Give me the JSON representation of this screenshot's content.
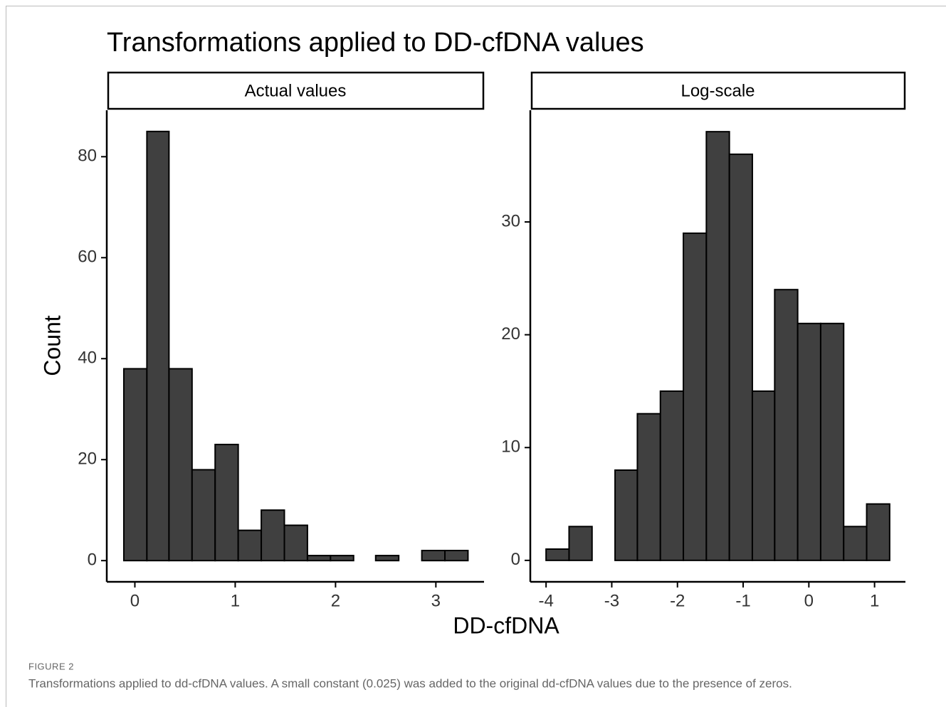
{
  "figure": {
    "title": "Transformations applied to DD-cfDNA values",
    "xlabel": "DD-cfDNA",
    "ylabel": "Count",
    "label": "FIGURE 2",
    "caption": "Transformations applied to dd-cfDNA values. A small constant (0.025) was added to the original dd-cfDNA values due to the presence of zeros."
  },
  "chart_data": [
    {
      "type": "histogram",
      "title": "Actual values",
      "bins": [
        -0.11,
        0.12,
        0.34,
        0.57,
        0.8,
        1.03,
        1.26,
        1.49,
        1.72,
        1.95,
        2.18,
        2.4,
        2.63,
        2.86,
        3.09,
        3.32
      ],
      "values": [
        38,
        85,
        38,
        18,
        23,
        6,
        10,
        7,
        1,
        1,
        0,
        1,
        0,
        2,
        2
      ],
      "color": "#404040",
      "xlim": [
        -0.28,
        3.48
      ],
      "xticks": [
        0,
        1,
        2,
        3
      ],
      "ylim": [
        -4.2,
        89.2
      ],
      "yticks": [
        0,
        20,
        40,
        60,
        80
      ]
    },
    {
      "type": "histogram",
      "title": "Log-scale",
      "bins": [
        -4,
        -3.65,
        -3.3,
        -2.95,
        -2.61,
        -2.26,
        -1.91,
        -1.56,
        -1.21,
        -0.86,
        -0.52,
        -0.17,
        0.18,
        0.53,
        0.88,
        1.23
      ],
      "values": [
        1,
        3,
        0,
        8,
        13,
        15,
        29,
        38,
        36,
        15,
        24,
        21,
        21,
        3,
        5
      ],
      "color": "#404040",
      "xlim": [
        -4.24,
        1.47
      ],
      "xticks": [
        -4,
        -3,
        -2,
        -1,
        0,
        1
      ],
      "ylim": [
        -1.9,
        39.9
      ],
      "yticks": [
        0,
        10,
        20,
        30
      ]
    }
  ]
}
